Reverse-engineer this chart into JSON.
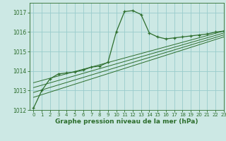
{
  "title": "Graphe pression niveau de la mer (hPa)",
  "background_color": "#cce8e4",
  "grid_color": "#99cccc",
  "line_color": "#2d6e2d",
  "marker_color": "#2d6e2d",
  "ylim": [
    1012,
    1017.5
  ],
  "xlim": [
    -0.5,
    23
  ],
  "yticks": [
    1012,
    1013,
    1014,
    1015,
    1016,
    1017
  ],
  "xticks": [
    0,
    1,
    2,
    3,
    4,
    5,
    6,
    7,
    8,
    9,
    10,
    11,
    12,
    13,
    14,
    15,
    16,
    17,
    18,
    19,
    20,
    21,
    22,
    23
  ],
  "main_x": [
    0,
    1,
    2,
    3,
    4,
    5,
    6,
    7,
    8,
    9,
    10,
    11,
    12,
    13,
    14,
    15,
    16,
    17,
    18,
    19,
    20,
    21,
    22,
    23
  ],
  "main_y": [
    1012.1,
    1013.0,
    1013.6,
    1013.85,
    1013.9,
    1013.95,
    1014.05,
    1014.2,
    1014.25,
    1014.45,
    1016.0,
    1017.05,
    1017.1,
    1016.9,
    1015.95,
    1015.75,
    1015.65,
    1015.7,
    1015.75,
    1015.8,
    1015.85,
    1015.9,
    1016.0,
    1016.05
  ],
  "diag_lines": [
    {
      "x": [
        0,
        23
      ],
      "y": [
        1013.4,
        1016.05
      ]
    },
    {
      "x": [
        0,
        23
      ],
      "y": [
        1013.15,
        1015.95
      ]
    },
    {
      "x": [
        0,
        23
      ],
      "y": [
        1012.9,
        1015.85
      ]
    },
    {
      "x": [
        0,
        23
      ],
      "y": [
        1012.65,
        1015.75
      ]
    }
  ]
}
